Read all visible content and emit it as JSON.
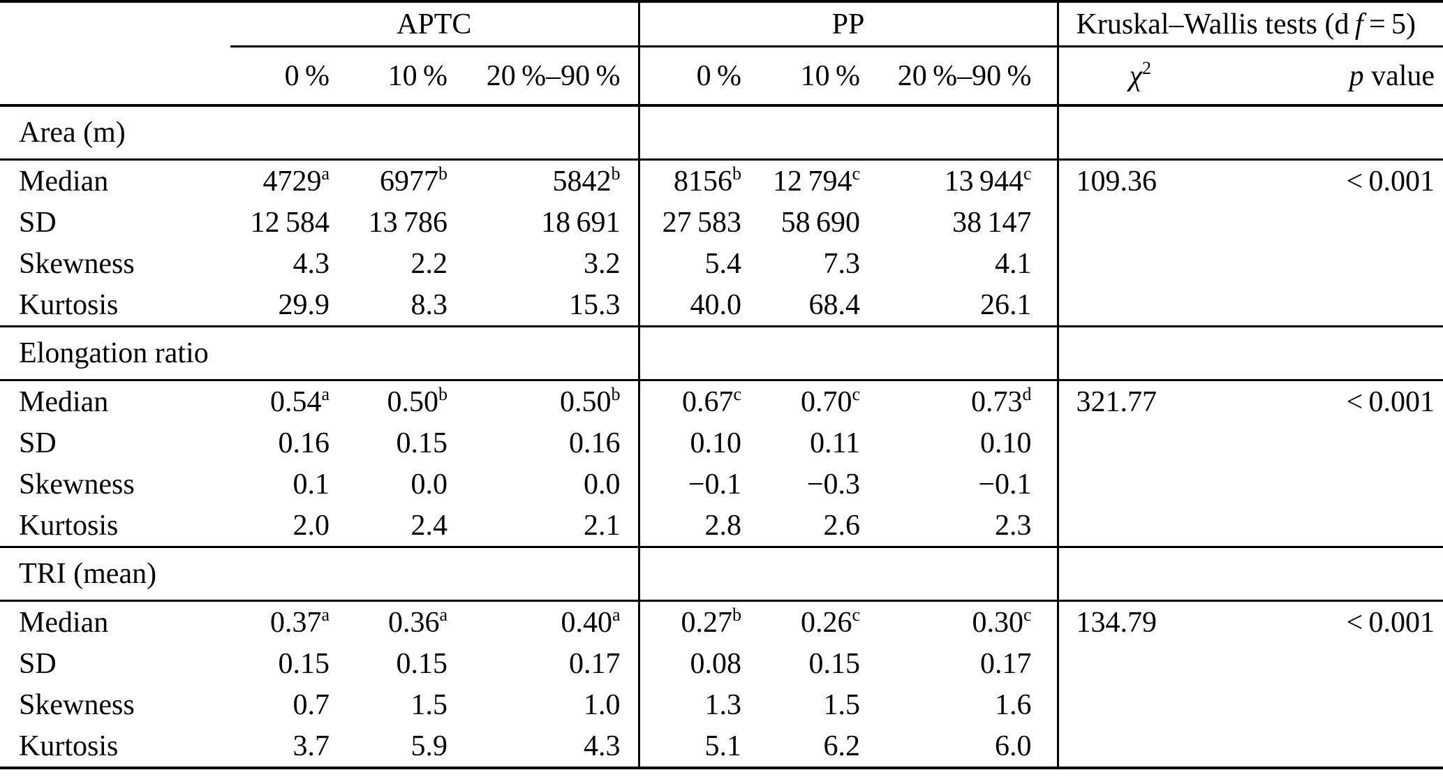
{
  "page": {
    "background": "#ffffff",
    "text_color": "#000000"
  },
  "table": {
    "header": {
      "group1": "APTC",
      "group2": "PP",
      "kw": {
        "prefix": "Kruskal–Wallis tests (d ",
        "f": "f",
        "suffix": " = 5)"
      },
      "sub": [
        "0 %",
        "10 %",
        "20 %–90 %",
        "0 %",
        "10 %",
        "20 %–90 %"
      ],
      "chi": {
        "base": "χ",
        "sup": "2"
      },
      "p": {
        "italic": "p",
        "rest": " value"
      }
    },
    "sections": [
      {
        "title": "Area (m)",
        "rows": [
          {
            "label": "Median",
            "cells": [
              {
                "v": "4729",
                "s": "a"
              },
              {
                "v": "6977",
                "s": "b"
              },
              {
                "v": "5842",
                "s": "b"
              },
              {
                "v": "8156",
                "s": "b"
              },
              {
                "v": "12 794",
                "s": "c"
              },
              {
                "v": "13 944",
                "s": "c"
              }
            ],
            "chi2": "109.36",
            "p": "< 0.001"
          },
          {
            "label": "SD",
            "cells": [
              {
                "v": "12 584"
              },
              {
                "v": "13 786"
              },
              {
                "v": "18 691"
              },
              {
                "v": "27 583"
              },
              {
                "v": "58 690"
              },
              {
                "v": "38 147"
              }
            ]
          },
          {
            "label": "Skewness",
            "cells": [
              {
                "v": "4.3"
              },
              {
                "v": "2.2"
              },
              {
                "v": "3.2"
              },
              {
                "v": "5.4"
              },
              {
                "v": "7.3"
              },
              {
                "v": "4.1"
              }
            ]
          },
          {
            "label": "Kurtosis",
            "cells": [
              {
                "v": "29.9"
              },
              {
                "v": "8.3"
              },
              {
                "v": "15.3"
              },
              {
                "v": "40.0"
              },
              {
                "v": "68.4"
              },
              {
                "v": "26.1"
              }
            ]
          }
        ]
      },
      {
        "title": "Elongation ratio",
        "rows": [
          {
            "label": "Median",
            "cells": [
              {
                "v": "0.54",
                "s": "a"
              },
              {
                "v": "0.50",
                "s": "b"
              },
              {
                "v": "0.50",
                "s": "b"
              },
              {
                "v": "0.67",
                "s": "c"
              },
              {
                "v": "0.70",
                "s": "c"
              },
              {
                "v": "0.73",
                "s": "d"
              }
            ],
            "chi2": "321.77",
            "p": "< 0.001"
          },
          {
            "label": "SD",
            "cells": [
              {
                "v": "0.16"
              },
              {
                "v": "0.15"
              },
              {
                "v": "0.16"
              },
              {
                "v": "0.10"
              },
              {
                "v": "0.11"
              },
              {
                "v": "0.10"
              }
            ]
          },
          {
            "label": "Skewness",
            "cells": [
              {
                "v": "0.1"
              },
              {
                "v": "0.0"
              },
              {
                "v": "0.0"
              },
              {
                "v": "−0.1"
              },
              {
                "v": "−0.3"
              },
              {
                "v": "−0.1"
              }
            ]
          },
          {
            "label": "Kurtosis",
            "cells": [
              {
                "v": "2.0"
              },
              {
                "v": "2.4"
              },
              {
                "v": "2.1"
              },
              {
                "v": "2.8"
              },
              {
                "v": "2.6"
              },
              {
                "v": "2.3"
              }
            ]
          }
        ]
      },
      {
        "title": "TRI (mean)",
        "rows": [
          {
            "label": "Median",
            "cells": [
              {
                "v": "0.37",
                "s": "a"
              },
              {
                "v": "0.36",
                "s": "a"
              },
              {
                "v": "0.40",
                "s": "a"
              },
              {
                "v": "0.27",
                "s": "b"
              },
              {
                "v": "0.26",
                "s": "c"
              },
              {
                "v": "0.30",
                "s": "c"
              }
            ],
            "chi2": "134.79",
            "p": "< 0.001"
          },
          {
            "label": "SD",
            "cells": [
              {
                "v": "0.15"
              },
              {
                "v": "0.15"
              },
              {
                "v": "0.17"
              },
              {
                "v": "0.08"
              },
              {
                "v": "0.15"
              },
              {
                "v": "0.17"
              }
            ]
          },
          {
            "label": "Skewness",
            "cells": [
              {
                "v": "0.7"
              },
              {
                "v": "1.5"
              },
              {
                "v": "1.0"
              },
              {
                "v": "1.3"
              },
              {
                "v": "1.5"
              },
              {
                "v": "1.6"
              }
            ]
          },
          {
            "label": "Kurtosis",
            "cells": [
              {
                "v": "3.7"
              },
              {
                "v": "5.9"
              },
              {
                "v": "4.3"
              },
              {
                "v": "5.1"
              },
              {
                "v": "6.2"
              },
              {
                "v": "6.0"
              }
            ]
          }
        ]
      }
    ]
  }
}
